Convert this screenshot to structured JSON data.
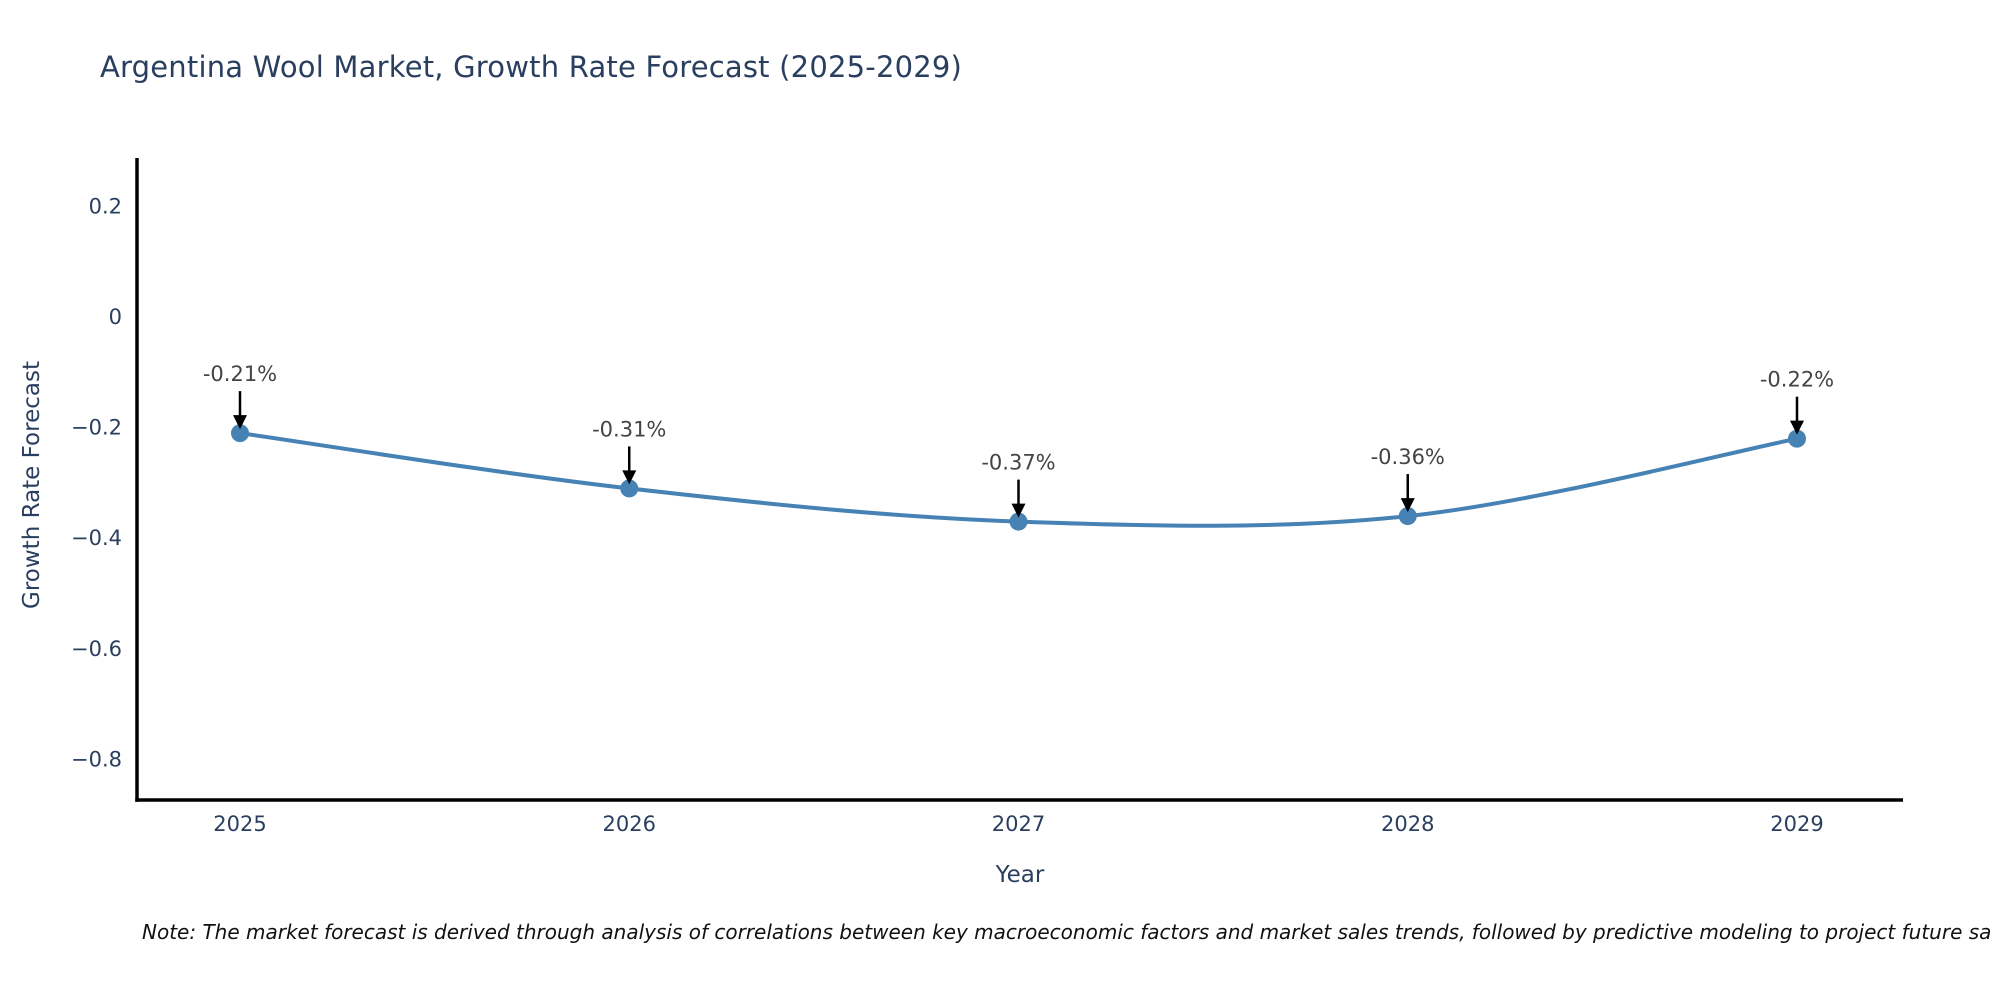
{
  "chart_data": {
    "type": "line",
    "title": "Argentina Wool Market, Growth Rate Forecast (2025-2029)",
    "xlabel": "Year",
    "ylabel": "Growth Rate Forecast",
    "categories": [
      "2025",
      "2026",
      "2027",
      "2028",
      "2029"
    ],
    "series": [
      {
        "name": "Growth Rate Forecast",
        "values": [
          -0.21,
          -0.31,
          -0.37,
          -0.36,
          -0.22
        ]
      }
    ],
    "point_labels": [
      "-0.21%",
      "-0.31%",
      "-0.37%",
      "-0.36%",
      "-0.22%"
    ],
    "ytick_values": [
      0.2,
      0,
      -0.2,
      -0.4,
      -0.6,
      -0.8
    ],
    "ytick_labels": [
      "0.2",
      "0",
      "−0.2",
      "−0.4",
      "−0.6",
      "−0.8"
    ],
    "ylim": [
      -0.87,
      0.28
    ],
    "line_shape": "spline",
    "grid": false,
    "legend_position": "none",
    "colors": {
      "line": "#4682b4",
      "marker": "#4682b4",
      "axis_line": "#000000",
      "axis_text": "#2a3f5f",
      "title_text": "#2a3f5f",
      "annotation_text": "#444444",
      "arrow": "#000000",
      "background": "#ffffff"
    }
  },
  "note": "Note: The market forecast is derived through analysis of correlations between key macroeconomic factors and market sales trends, followed by predictive modeling to project future sa"
}
